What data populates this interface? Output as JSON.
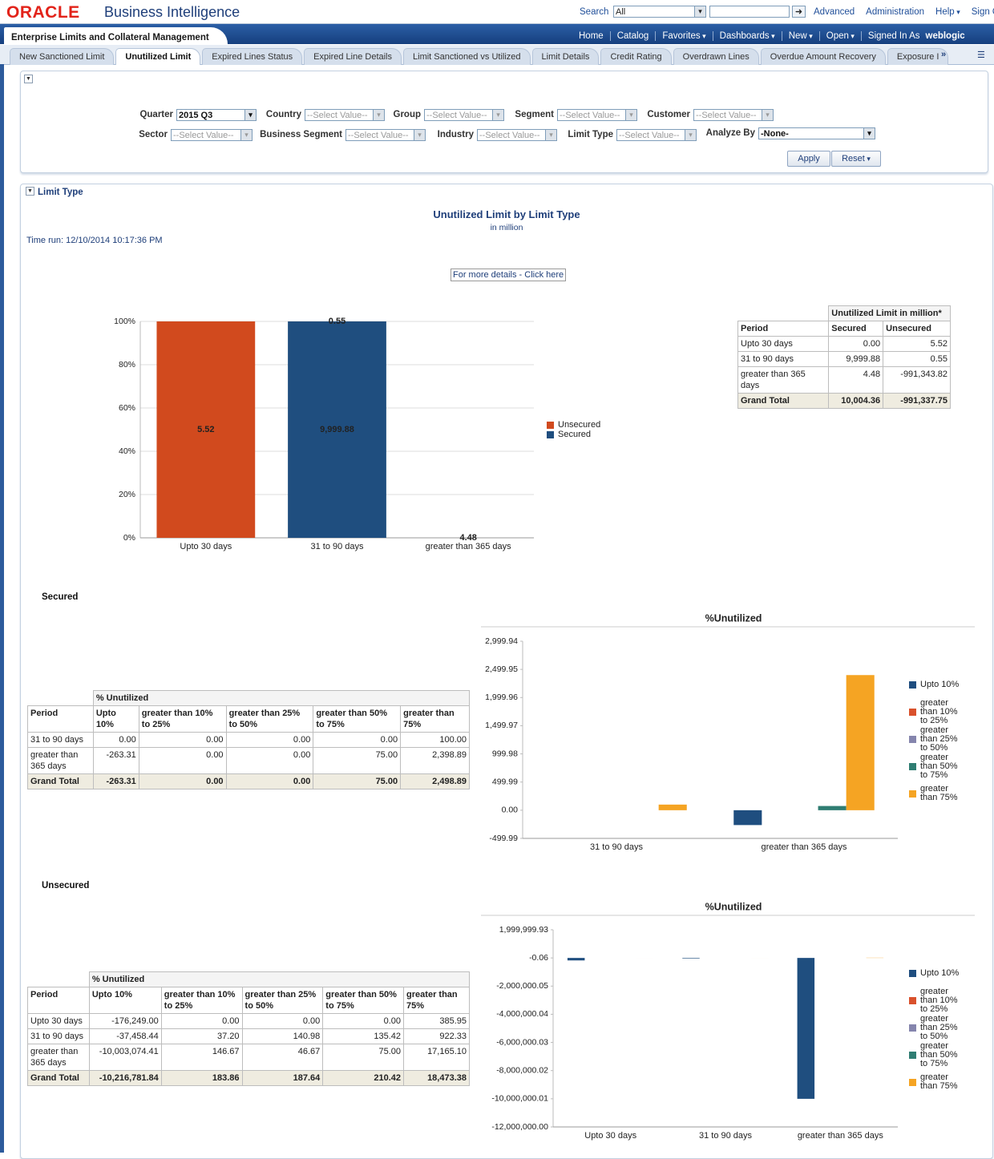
{
  "header": {
    "logo": "ORACLE",
    "product": "Business Intelligence",
    "search_label": "Search",
    "search_scope": "All",
    "links": [
      "Advanced",
      "Administration",
      "Help",
      "Sign Out"
    ]
  },
  "nav": {
    "title": "Enterprise Limits and Collateral Management",
    "links": [
      "Home",
      "Catalog",
      "Favorites",
      "Dashboards",
      "New",
      "Open",
      "Signed In As"
    ],
    "user": "weblogic"
  },
  "tabs": [
    "New Sanctioned Limit",
    "Unutilized Limit",
    "Expired Lines Status",
    "Expired Line Details",
    "Limit Sanctioned vs Utilized",
    "Limit Details",
    "Credit Rating",
    "Overdrawn Lines",
    "Overdue Amount Recovery",
    "Exposure I"
  ],
  "prompts": {
    "fields": [
      {
        "label": "Quarter",
        "value": "2015 Q3"
      },
      {
        "label": "Country",
        "value": "--Select Value--"
      },
      {
        "label": "Group",
        "value": "--Select Value--"
      },
      {
        "label": "Segment",
        "value": "--Select Value--"
      },
      {
        "label": "Customer",
        "value": "--Select Value--"
      },
      {
        "label": "Sector",
        "value": "--Select Value--"
      },
      {
        "label": "Business Segment",
        "value": "--Select Value--"
      },
      {
        "label": "Industry",
        "value": "--Select Value--"
      },
      {
        "label": "Limit Type",
        "value": "--Select Value--"
      },
      {
        "label": "Analyze By",
        "value": "-None-"
      }
    ],
    "buttons": [
      "Apply",
      "Reset"
    ]
  },
  "section": {
    "title": "Limit Type"
  },
  "report": {
    "time_run": "Time run: 12/10/2014 10:17:36 PM",
    "link": "For more details - Click here"
  },
  "summary_table": {
    "group_header": "Unutilized Limit in million*",
    "columns": [
      "Period",
      "Secured",
      "Unsecured"
    ],
    "rows": [
      [
        "Upto 30 days",
        "0.00",
        "5.52"
      ],
      [
        "31 to 90 days",
        "9,999.88",
        "0.55"
      ],
      [
        "greater than 365 days",
        "4.48",
        "-991,343.82"
      ],
      [
        "Grand Total",
        "10,004.36",
        "-991,337.75"
      ]
    ]
  },
  "secured": {
    "title": "Secured",
    "table": {
      "group_header": "% Unutilized",
      "columns": [
        "Period",
        "Upto 10%",
        "greater than 10% to 25%",
        "greater than 25% to 50%",
        "greater than 50% to 75%",
        "greater than 75%"
      ],
      "rows": [
        [
          "31 to 90 days",
          "0.00",
          "0.00",
          "0.00",
          "0.00",
          "100.00"
        ],
        [
          "greater than 365 days",
          "-263.31",
          "0.00",
          "0.00",
          "75.00",
          "2,398.89"
        ],
        [
          "Grand Total",
          "-263.31",
          "0.00",
          "0.00",
          "75.00",
          "2,498.89"
        ]
      ]
    }
  },
  "unsecured": {
    "title": "Unsecured",
    "table": {
      "group_header": "% Unutilized",
      "columns": [
        "Period",
        "Upto 10%",
        "greater than 10% to 25%",
        "greater than 25% to 50%",
        "greater than 50% to 75%",
        "greater than 75%"
      ],
      "rows": [
        [
          "Upto 30 days",
          "-176,249.00",
          "0.00",
          "0.00",
          "0.00",
          "385.95"
        ],
        [
          "31 to 90 days",
          "-37,458.44",
          "37.20",
          "140.98",
          "135.42",
          "922.33"
        ],
        [
          "greater than 365 days",
          "-10,003,074.41",
          "146.67",
          "46.67",
          "75.00",
          "17,165.10"
        ],
        [
          "Grand Total",
          "-10,216,781.84",
          "183.86",
          "187.64",
          "210.42",
          "18,473.38"
        ]
      ]
    }
  },
  "chart_data": [
    {
      "type": "bar",
      "stacking": "percent",
      "title": "Unutilized Limit by Limit Type",
      "subtitle": "in million",
      "categories": [
        "Upto 30 days",
        "31 to 90 days",
        "greater than 365 days"
      ],
      "series": [
        {
          "name": "Secured",
          "color": "#1f4e7f",
          "values": [
            0,
            9999.88,
            4.48
          ],
          "value_labels": [
            null,
            "9,999.88",
            "4.48"
          ]
        },
        {
          "name": "Unsecured",
          "color": "#d14a1e",
          "values": [
            5.52,
            0.55,
            -991343.82
          ],
          "value_labels": [
            "5.52",
            "0.55",
            null
          ]
        }
      ],
      "ylim": [
        0,
        100
      ],
      "yticks": [
        {
          "value": 0,
          "label": "0%"
        },
        {
          "value": 20,
          "label": "20%"
        },
        {
          "value": 40,
          "label": "40%"
        },
        {
          "value": 60,
          "label": "60%"
        },
        {
          "value": 80,
          "label": "80%"
        },
        {
          "value": 100,
          "label": "100%"
        }
      ],
      "grid": true,
      "legend": "right"
    },
    {
      "type": "bar",
      "title": "%Unutilized",
      "categories": [
        "31 to 90 days",
        "greater than 365 days"
      ],
      "series": [
        {
          "name": "Upto 10%",
          "color": "#1f4e7f",
          "values": [
            0,
            -263.31
          ]
        },
        {
          "name": "greater than 10% to 25%",
          "color": "#d9512c",
          "values": [
            0,
            0
          ]
        },
        {
          "name": "greater than 25% to 50%",
          "color": "#8585ad",
          "values": [
            0,
            0
          ]
        },
        {
          "name": "greater than 50% to 75%",
          "color": "#2f7d72",
          "values": [
            0,
            75
          ]
        },
        {
          "name": "greater than 75%",
          "color": "#f5a423",
          "values": [
            100,
            2398.89
          ]
        }
      ],
      "ylim": [
        -499.99,
        2999.94
      ],
      "yticks": [
        -499.99,
        {
          "value": 0,
          "label": "0.00"
        },
        499.99,
        999.98,
        {
          "value": 1499.97,
          "label": "1,499.97"
        },
        {
          "value": 1999.96,
          "label": "1,999.96"
        },
        {
          "value": 2499.95,
          "label": "2,499.95"
        },
        {
          "value": 2999.94,
          "label": "2,999.94"
        }
      ],
      "grid": false,
      "legend": "right"
    },
    {
      "type": "bar",
      "title": "%Unutilized",
      "categories": [
        "Upto 30 days",
        "31 to 90 days",
        "greater than 365 days"
      ],
      "series": [
        {
          "name": "Upto 10%",
          "color": "#1f4e7f",
          "values": [
            -176249,
            -37458.44,
            -10003074.41
          ]
        },
        {
          "name": "greater than 10% to 25%",
          "color": "#d9512c",
          "values": [
            0,
            37.2,
            146.67
          ]
        },
        {
          "name": "greater than 25% to 50%",
          "color": "#8585ad",
          "values": [
            0,
            140.98,
            46.67
          ]
        },
        {
          "name": "greater than 50% to 75%",
          "color": "#2f7d72",
          "values": [
            0,
            135.42,
            75
          ]
        },
        {
          "name": "greater than 75%",
          "color": "#f5a423",
          "values": [
            385.95,
            922.33,
            17165.1
          ]
        }
      ],
      "ylim": [
        -12000000,
        1999999.93
      ],
      "yticks": [
        {
          "value": -12000000,
          "label": "-12,000,000.00"
        },
        {
          "value": -10000000.01,
          "label": "-10,000,000.01"
        },
        {
          "value": -8000000.02,
          "label": "-8,000,000.02"
        },
        {
          "value": -6000000.03,
          "label": "-6,000,000.03"
        },
        {
          "value": -4000000.04,
          "label": "-4,000,000.04"
        },
        {
          "value": -2000000.05,
          "label": "-2,000,000.05"
        },
        -0.06,
        {
          "value": 1999999.93,
          "label": "1,999,999.93"
        }
      ],
      "grid": false,
      "legend": "right"
    }
  ]
}
